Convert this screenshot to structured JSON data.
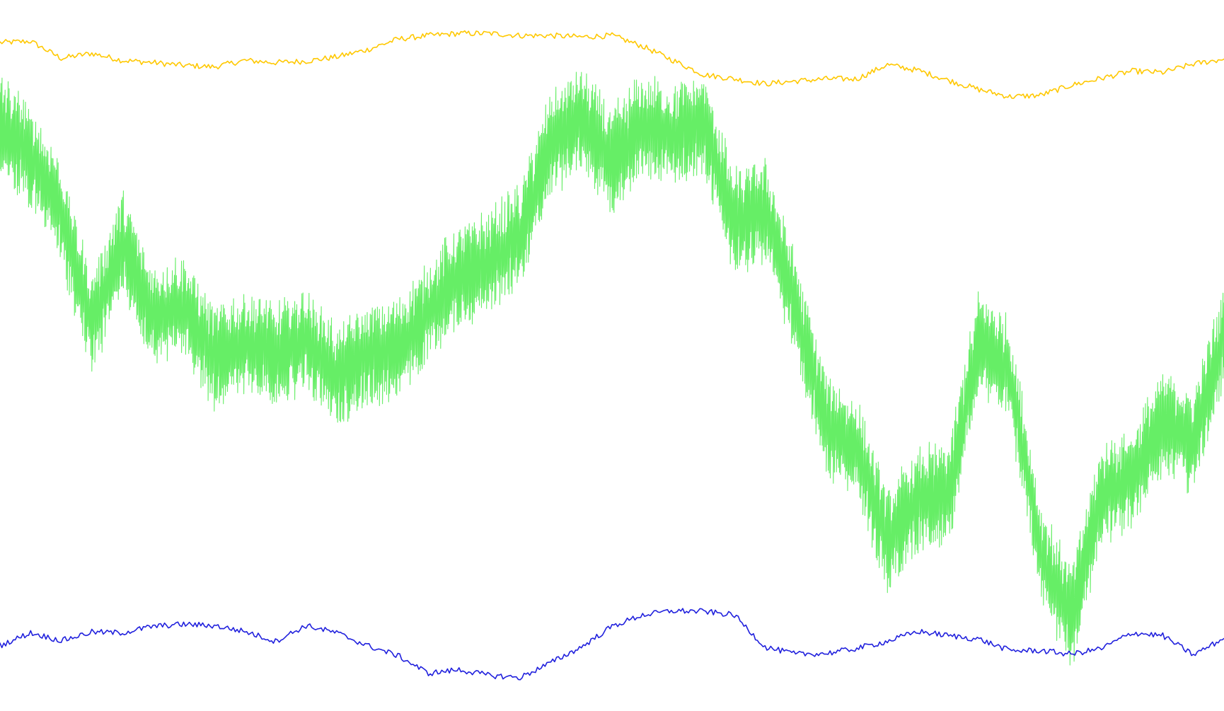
{
  "chart_data": {
    "type": "line",
    "title": "",
    "xlabel": "",
    "ylabel": "",
    "grid": false,
    "legend": "none",
    "xlim": [
      0,
      1
    ],
    "ylim": [
      0,
      1
    ],
    "x": [
      0.0,
      0.025,
      0.05,
      0.075,
      0.1,
      0.125,
      0.15,
      0.175,
      0.2,
      0.225,
      0.25,
      0.275,
      0.3,
      0.325,
      0.35,
      0.375,
      0.4,
      0.425,
      0.45,
      0.475,
      0.5,
      0.525,
      0.55,
      0.575,
      0.6,
      0.625,
      0.65,
      0.675,
      0.7,
      0.725,
      0.75,
      0.775,
      0.8,
      0.825,
      0.85,
      0.875,
      0.9,
      0.925,
      0.95,
      0.975,
      1.0
    ],
    "series": [
      {
        "color": "#ffc800",
        "style": "line",
        "values": [
          0.94,
          0.942,
          0.918,
          0.925,
          0.915,
          0.912,
          0.908,
          0.906,
          0.915,
          0.912,
          0.914,
          0.92,
          0.93,
          0.945,
          0.95,
          0.953,
          0.953,
          0.95,
          0.95,
          0.948,
          0.95,
          0.935,
          0.915,
          0.895,
          0.889,
          0.882,
          0.886,
          0.889,
          0.889,
          0.909,
          0.901,
          0.887,
          0.874,
          0.864,
          0.866,
          0.88,
          0.89,
          0.9,
          0.898,
          0.91,
          0.917
        ]
      },
      {
        "color": "#66ee66",
        "style": "oscillating",
        "values": [
          0.822,
          0.78,
          0.7,
          0.545,
          0.66,
          0.555,
          0.57,
          0.496,
          0.52,
          0.498,
          0.522,
          0.47,
          0.498,
          0.508,
          0.562,
          0.61,
          0.63,
          0.67,
          0.8,
          0.832,
          0.775,
          0.825,
          0.805,
          0.828,
          0.686,
          0.704,
          0.57,
          0.4,
          0.37,
          0.24,
          0.298,
          0.306,
          0.52,
          0.476,
          0.226,
          0.13,
          0.305,
          0.328,
          0.41,
          0.376,
          0.529
        ]
      },
      {
        "color": "#2020dd",
        "style": "line",
        "values": [
          0.092,
          0.11,
          0.099,
          0.111,
          0.11,
          0.119,
          0.122,
          0.12,
          0.112,
          0.098,
          0.12,
          0.11,
          0.092,
          0.078,
          0.053,
          0.058,
          0.05,
          0.047,
          0.068,
          0.09,
          0.119,
          0.135,
          0.141,
          0.14,
          0.135,
          0.09,
          0.08,
          0.081,
          0.088,
          0.098,
          0.112,
          0.106,
          0.101,
          0.085,
          0.085,
          0.08,
          0.088,
          0.11,
          0.106,
          0.079,
          0.102
        ]
      }
    ]
  }
}
